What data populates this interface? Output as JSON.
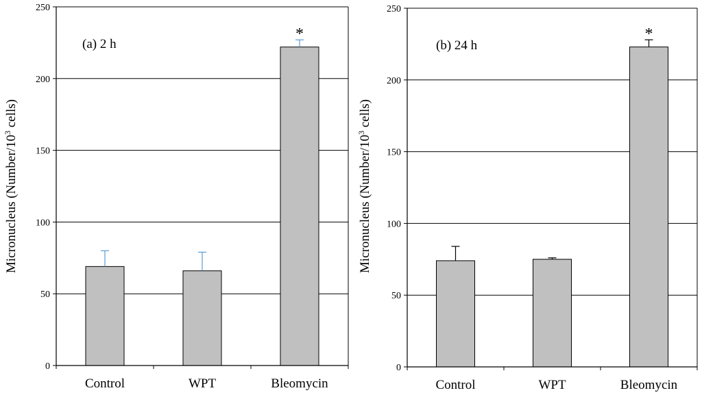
{
  "chart_data": [
    {
      "type": "bar",
      "title": "(a) 2 h",
      "categories": [
        "Control",
        "WPT",
        "Bleomycin"
      ],
      "values": [
        69,
        66,
        222
      ],
      "errors": [
        11,
        13,
        5
      ],
      "error_color": "#5b9bd5",
      "significance": [
        "",
        "",
        "*"
      ],
      "ylabel_main": "Micronucleus (Number/10",
      "ylabel_sup": "3",
      "ylabel_end": " cells)",
      "ylim": [
        0,
        250
      ],
      "yticks": [
        0,
        50,
        100,
        150,
        200,
        250
      ],
      "grid": true,
      "bar_color": "#c0c0c0"
    },
    {
      "type": "bar",
      "title": "(b) 24 h",
      "categories": [
        "Control",
        "WPT",
        "Bleomycin"
      ],
      "values": [
        74,
        75,
        223
      ],
      "errors": [
        10,
        1,
        5
      ],
      "error_color": "#000000",
      "significance": [
        "",
        "",
        "*"
      ],
      "ylabel_main": "Micronucleus (Number/10",
      "ylabel_sup": "3",
      "ylabel_end": " cells)",
      "ylim": [
        0,
        250
      ],
      "yticks": [
        0,
        50,
        100,
        150,
        200,
        250
      ],
      "grid": true,
      "bar_color": "#c0c0c0"
    }
  ]
}
